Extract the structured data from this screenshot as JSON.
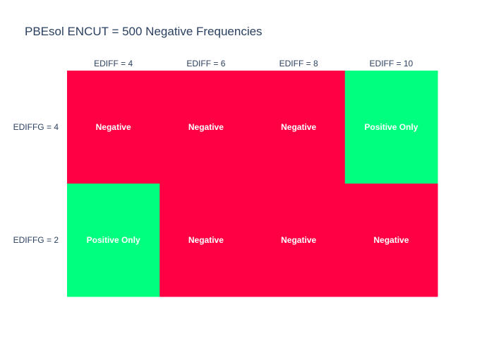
{
  "chart_data": {
    "type": "heatmap",
    "title": "PBEsol ENCUT = 500 Negative Frequencies",
    "x_categories": [
      "EDIFF = 4",
      "EDIFF = 6",
      "EDIFF = 8",
      "EDIFF = 10"
    ],
    "y_categories": [
      "EDIFFG = 4",
      "EDIFFG = 2"
    ],
    "cells": [
      [
        "Negative",
        "Negative",
        "Negative",
        "Positive Only"
      ],
      [
        "Positive Only",
        "Negative",
        "Negative",
        "Negative"
      ]
    ],
    "x_axis_position": "top",
    "colors": {
      "Negative": "#ff0044",
      "Positive Only": "#00ff7f"
    }
  }
}
